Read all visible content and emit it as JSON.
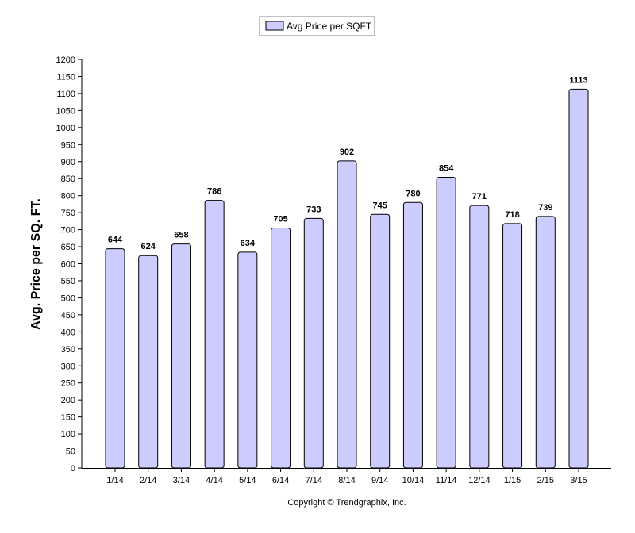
{
  "chart_data": {
    "type": "bar",
    "title": "",
    "xlabel": "",
    "ylabel": "Avg. Price per SQ. FT.",
    "categories": [
      "1/14",
      "2/14",
      "3/14",
      "4/14",
      "5/14",
      "6/14",
      "7/14",
      "8/14",
      "9/14",
      "10/14",
      "11/14",
      "12/14",
      "1/15",
      "2/15",
      "3/15"
    ],
    "series": [
      {
        "name": "Avg Price per SQFT",
        "values": [
          644,
          624,
          658,
          786,
          634,
          705,
          733,
          902,
          745,
          780,
          854,
          771,
          718,
          739,
          1113
        ],
        "color": "#ccccff",
        "stroke": "#000000"
      }
    ],
    "data_labels": [
      "644",
      "624",
      "658",
      "786",
      "634",
      "705",
      "733",
      "902",
      "745",
      "780",
      "854",
      "771",
      "718",
      "739",
      "1113"
    ],
    "ylim": [
      0,
      1200
    ],
    "yticks": [
      "0",
      "50",
      "100",
      "150",
      "200",
      "250",
      "300",
      "350",
      "400",
      "450",
      "500",
      "550",
      "600",
      "650",
      "700",
      "750",
      "800",
      "850",
      "900",
      "950",
      "1000",
      "1050",
      "1100",
      "1150",
      "1200"
    ],
    "grid": false,
    "legend": {
      "position": "top-center",
      "label": "Avg Price per SQFT"
    },
    "footer": "Copyright © Trendgraphix, Inc."
  }
}
